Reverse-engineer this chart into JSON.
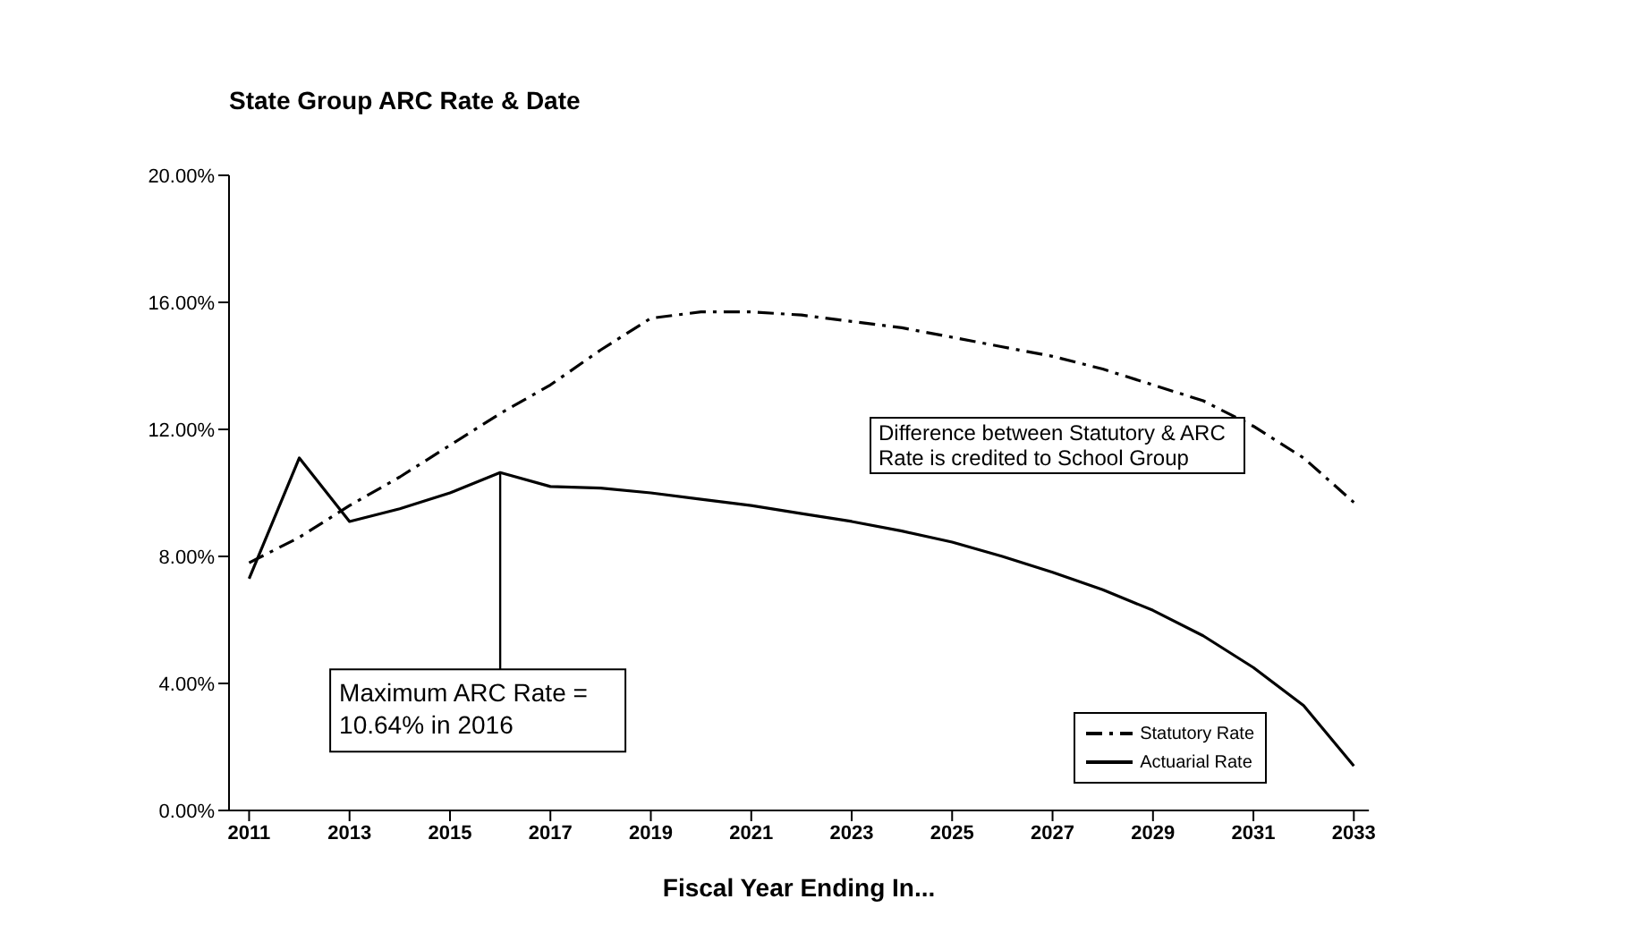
{
  "chart_data": {
    "type": "line",
    "title": "State Group ARC Rate & Date",
    "xlabel": "Fiscal Year Ending In...",
    "x": [
      2011,
      2012,
      2013,
      2014,
      2015,
      2016,
      2017,
      2018,
      2019,
      2020,
      2021,
      2022,
      2023,
      2024,
      2025,
      2026,
      2027,
      2028,
      2029,
      2030,
      2031,
      2032,
      2033
    ],
    "series": [
      {
        "name": "Statutory Rate",
        "color": "#000000",
        "line_style": "dashed",
        "values": [
          7.8,
          8.6,
          9.6,
          10.5,
          11.5,
          12.5,
          13.4,
          14.5,
          15.5,
          15.7,
          15.7,
          15.6,
          15.4,
          15.2,
          14.9,
          14.6,
          14.3,
          13.9,
          13.4,
          12.9,
          12.1,
          11.1,
          9.7
        ]
      },
      {
        "name": "Actuarial Rate",
        "color": "#000000",
        "line_style": "solid",
        "values": [
          7.3,
          11.1,
          9.1,
          9.5,
          10.0,
          10.64,
          10.2,
          10.15,
          10.0,
          9.8,
          9.6,
          9.35,
          9.1,
          8.8,
          8.45,
          8.0,
          7.5,
          6.95,
          6.3,
          5.5,
          4.5,
          3.3,
          1.4
        ]
      }
    ],
    "xlim": [
      2010.6,
      2033.3
    ],
    "xticks": [
      2011,
      2013,
      2015,
      2017,
      2019,
      2021,
      2023,
      2025,
      2027,
      2029,
      2031,
      2033
    ],
    "ylim": [
      0,
      20
    ],
    "yticks": [
      {
        "value": 0,
        "label": "0.00%"
      },
      {
        "value": 4,
        "label": "4.00%"
      },
      {
        "value": 8,
        "label": "8.00%"
      },
      {
        "value": 12,
        "label": "12.00%"
      },
      {
        "value": 16,
        "label": "16.00%"
      },
      {
        "value": 20,
        "label": "20.00%"
      }
    ],
    "annotations": [
      {
        "text": "Maximum ARC Rate = 10.64% in 2016",
        "x": 2016,
        "y": 10.64
      },
      "Difference between Statutory & ARC Rate is credited to School Group"
    ],
    "legend": "bottom right",
    "marker": "none",
    "grid": false
  }
}
